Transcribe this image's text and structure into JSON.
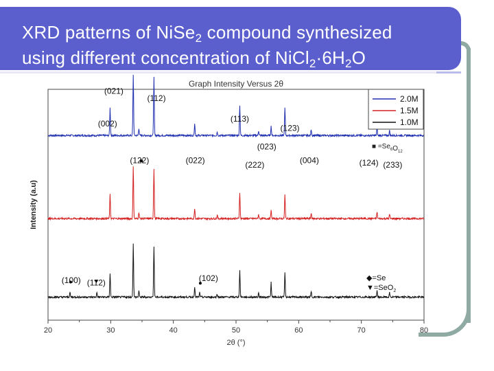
{
  "slide": {
    "title_line1_pre": "XRD patterns of NiSe",
    "title_line1_sub": "2",
    "title_line1_post": " compound synthesized",
    "title_line2_pre": "using different concentration of NiCl",
    "title_line2_sub1": "2",
    "title_line2_mid": "·6H",
    "title_line2_sub2": "2",
    "title_line2_post": "O"
  },
  "chart_data": {
    "type": "line",
    "title": "Graph Intensity Versus 2θ",
    "xlabel": "2θ (°)",
    "ylabel": "Intensity (a.u)",
    "xlim": [
      20,
      80
    ],
    "xticks": [
      "20",
      "30",
      "40",
      "50",
      "60",
      "70",
      "80"
    ],
    "legend_position": "top-right",
    "series": [
      {
        "name": "2.0M",
        "color": "#1f2fb0",
        "baseline": 0.8
      },
      {
        "name": "1.5M",
        "color": "#d42020",
        "baseline": 0.44
      },
      {
        "name": "1.0M",
        "color": "#111111",
        "baseline": 0.1
      }
    ],
    "peaks_2theta": [
      29.9,
      33.6,
      34.5,
      36.9,
      43.4,
      47.0,
      50.6,
      53.6,
      55.6,
      57.8,
      62.0,
      72.5,
      74.5
    ],
    "peak_heights": [
      0.45,
      1.0,
      0.12,
      0.95,
      0.2,
      0.06,
      0.5,
      0.08,
      0.15,
      0.45,
      0.1,
      0.12,
      0.08
    ],
    "impurity_peaks_1_0M": [
      23.5,
      27.8,
      44.2
    ],
    "symbol_legends": [
      {
        "symbol": "■",
        "text": "=Se",
        "sub": "6",
        "post": "O",
        "sub2": "12"
      },
      {
        "symbol": "◆",
        "text": "=Se"
      },
      {
        "symbol": "▼",
        "text": "=SeO",
        "sub": "2"
      }
    ],
    "annotations": [
      {
        "text": "(021)",
        "x": 30.5,
        "level": 0.98
      },
      {
        "text": "(112)",
        "x": 37.3,
        "level": 0.95
      },
      {
        "text": "(002)",
        "x": 29.5,
        "level": 0.84
      },
      {
        "text": "(122)",
        "x": 34.6,
        "level": 0.68
      },
      {
        "text": "(022)",
        "x": 43.5,
        "level": 0.68
      },
      {
        "text": "(113)",
        "x": 50.6,
        "level": 0.86
      },
      {
        "text": "(023)",
        "x": 54.9,
        "level": 0.74
      },
      {
        "text": "(123)",
        "x": 58.6,
        "level": 0.82
      },
      {
        "text": "(222)",
        "x": 53.0,
        "level": 0.66
      },
      {
        "text": "(004)",
        "x": 61.7,
        "level": 0.68
      },
      {
        "text": "(124)",
        "x": 71.2,
        "level": 0.67
      },
      {
        "text": "(233)",
        "x": 75.0,
        "level": 0.66
      },
      {
        "text": "(100)",
        "x": 23.7,
        "level": 0.16
      },
      {
        "text": "(112)",
        "x": 27.7,
        "level": 0.15
      },
      {
        "text": "(102)",
        "x": 45.6,
        "level": 0.17
      }
    ]
  }
}
